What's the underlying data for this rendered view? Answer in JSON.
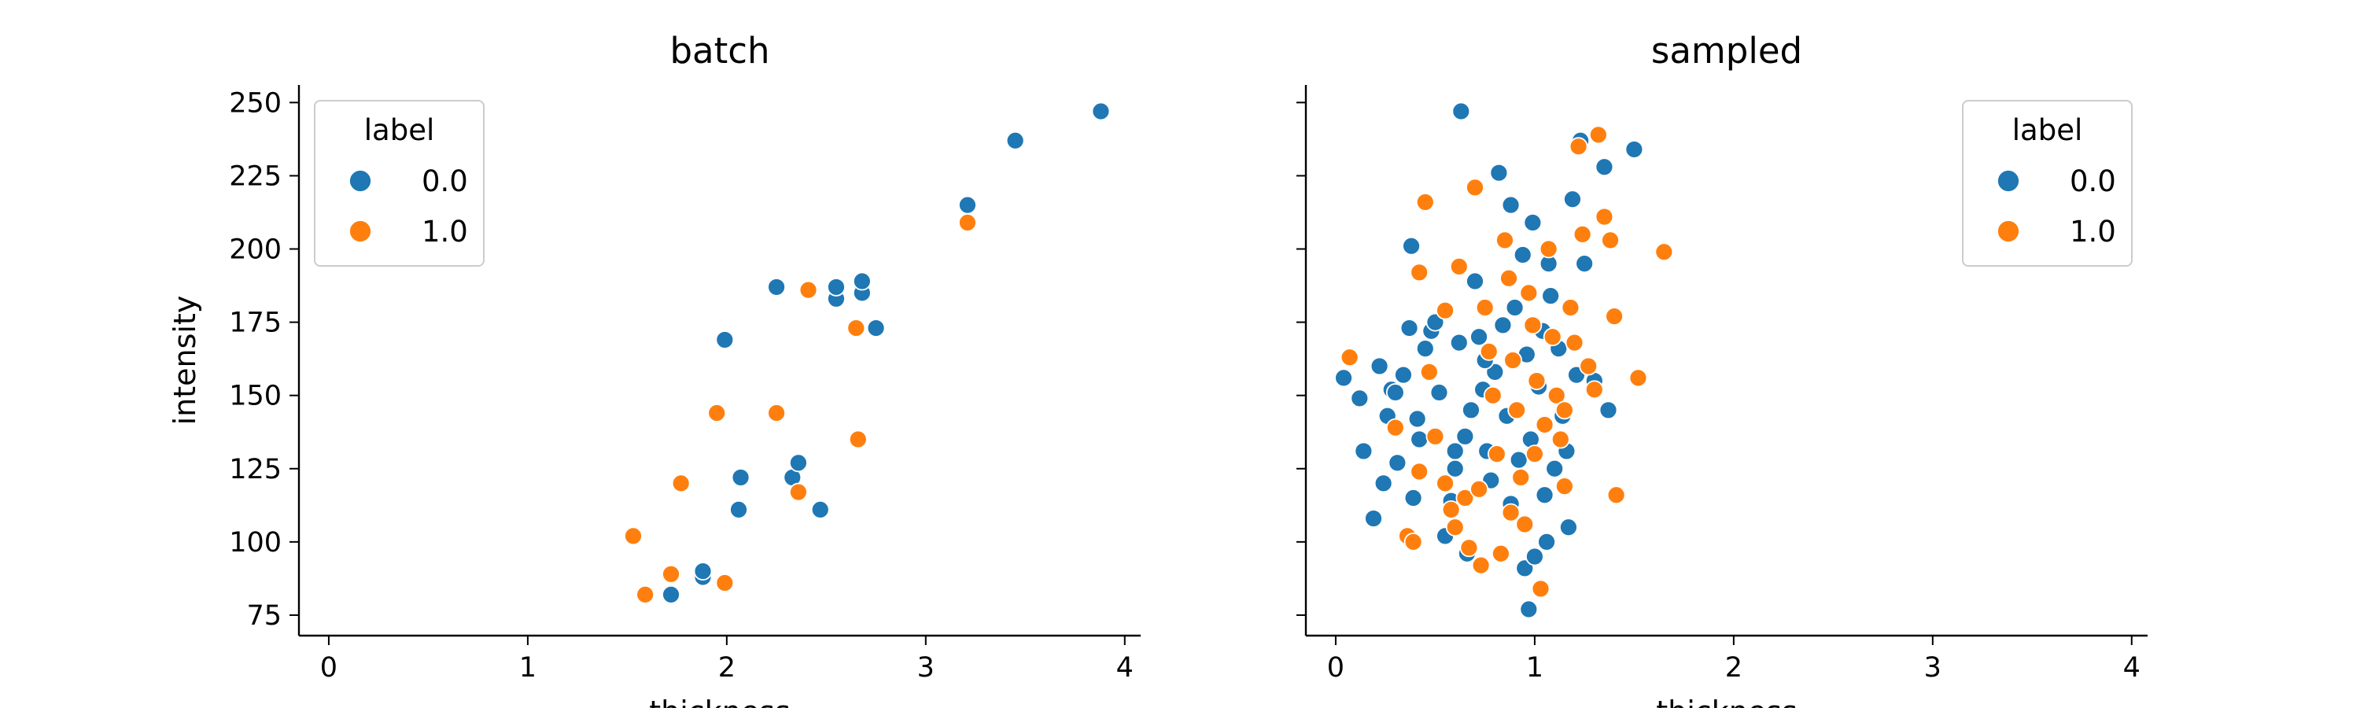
{
  "chart_data": [
    {
      "type": "scatter",
      "title": "batch",
      "xlabel": "thickness",
      "ylabel": "intensity",
      "xlim": [
        -0.15,
        4.08
      ],
      "ylim": [
        68,
        256
      ],
      "xticks": [
        0,
        1,
        2,
        3,
        4
      ],
      "yticks": [
        75,
        100,
        125,
        150,
        175,
        200,
        225,
        250
      ],
      "grid": false,
      "legend": {
        "title": "label",
        "placement": "top-left",
        "entries": [
          "0.0",
          "1.0"
        ]
      },
      "series": [
        {
          "name": "0.0",
          "color": "#1f77b4",
          "points": [
            [
              1.72,
              82
            ],
            [
              1.88,
              88
            ],
            [
              1.88,
              90
            ],
            [
              2.06,
              111
            ],
            [
              2.07,
              122
            ],
            [
              2.33,
              122
            ],
            [
              2.36,
              127
            ],
            [
              2.47,
              111
            ],
            [
              1.99,
              169
            ],
            [
              2.25,
              187
            ],
            [
              2.55,
              183
            ],
            [
              2.55,
              187
            ],
            [
              2.68,
              185
            ],
            [
              2.68,
              189
            ],
            [
              2.75,
              173
            ],
            [
              3.21,
              215
            ],
            [
              3.45,
              237
            ],
            [
              3.88,
              247
            ]
          ]
        },
        {
          "name": "1.0",
          "color": "#ff7f0e",
          "points": [
            [
              1.53,
              102
            ],
            [
              1.59,
              82
            ],
            [
              1.72,
              89
            ],
            [
              1.77,
              120
            ],
            [
              1.95,
              144
            ],
            [
              1.99,
              86
            ],
            [
              2.25,
              144
            ],
            [
              2.36,
              117
            ],
            [
              2.41,
              186
            ],
            [
              2.65,
              173
            ],
            [
              2.66,
              135
            ],
            [
              3.21,
              209
            ]
          ]
        }
      ]
    },
    {
      "type": "scatter",
      "title": "sampled",
      "xlabel": "thickness",
      "ylabel": "",
      "xlim": [
        -0.15,
        4.08
      ],
      "ylim": [
        68,
        256
      ],
      "xticks": [
        0,
        1,
        2,
        3,
        4
      ],
      "yticks": [
        75,
        100,
        125,
        150,
        175,
        200,
        225,
        250
      ],
      "grid": false,
      "legend": {
        "title": "label",
        "placement": "top-right",
        "entries": [
          "0.0",
          "1.0"
        ]
      },
      "series": [
        {
          "name": "0.0",
          "color": "#1f77b4",
          "points": [
            [
              0.04,
              156
            ],
            [
              0.12,
              149
            ],
            [
              0.14,
              131
            ],
            [
              0.19,
              108
            ],
            [
              0.22,
              160
            ],
            [
              0.24,
              120
            ],
            [
              0.26,
              143
            ],
            [
              0.28,
              152
            ],
            [
              0.31,
              127
            ],
            [
              0.34,
              157
            ],
            [
              0.37,
              173
            ],
            [
              0.39,
              115
            ],
            [
              0.41,
              142
            ],
            [
              0.42,
              135
            ],
            [
              0.45,
              166
            ],
            [
              0.48,
              172
            ],
            [
              0.52,
              151
            ],
            [
              0.55,
              102
            ],
            [
              0.58,
              114
            ],
            [
              0.6,
              125
            ],
            [
              0.62,
              168
            ],
            [
              0.63,
              247
            ],
            [
              0.65,
              136
            ],
            [
              0.66,
              96
            ],
            [
              0.68,
              145
            ],
            [
              0.7,
              189
            ],
            [
              0.72,
              170
            ],
            [
              0.74,
              152
            ],
            [
              0.76,
              131
            ],
            [
              0.78,
              121
            ],
            [
              0.8,
              158
            ],
            [
              0.82,
              226
            ],
            [
              0.84,
              174
            ],
            [
              0.86,
              143
            ],
            [
              0.88,
              113
            ],
            [
              0.9,
              180
            ],
            [
              0.92,
              128
            ],
            [
              0.94,
              198
            ],
            [
              0.95,
              91
            ],
            [
              0.96,
              164
            ],
            [
              0.97,
              77
            ],
            [
              0.98,
              135
            ],
            [
              1.0,
              95
            ],
            [
              1.02,
              153
            ],
            [
              1.04,
              172
            ],
            [
              1.05,
              116
            ],
            [
              1.06,
              100
            ],
            [
              1.08,
              184
            ],
            [
              1.1,
              125
            ],
            [
              1.12,
              166
            ],
            [
              1.14,
              143
            ],
            [
              1.16,
              131
            ],
            [
              1.17,
              105
            ],
            [
              1.19,
              217
            ],
            [
              1.21,
              157
            ],
            [
              1.23,
              237
            ],
            [
              1.25,
              195
            ],
            [
              1.3,
              155
            ],
            [
              1.35,
              228
            ],
            [
              1.37,
              145
            ],
            [
              1.5,
              234
            ],
            [
              0.38,
              201
            ],
            [
              0.5,
              175
            ],
            [
              0.75,
              162
            ],
            [
              0.88,
              215
            ],
            [
              1.07,
              195
            ],
            [
              0.99,
              209
            ],
            [
              0.3,
              151
            ],
            [
              0.6,
              131
            ]
          ]
        },
        {
          "name": "1.0",
          "color": "#ff7f0e",
          "points": [
            [
              0.07,
              163
            ],
            [
              0.3,
              139
            ],
            [
              0.36,
              102
            ],
            [
              0.39,
              100
            ],
            [
              0.42,
              192
            ],
            [
              0.45,
              216
            ],
            [
              0.47,
              158
            ],
            [
              0.5,
              136
            ],
            [
              0.55,
              120
            ],
            [
              0.58,
              111
            ],
            [
              0.6,
              105
            ],
            [
              0.62,
              194
            ],
            [
              0.65,
              115
            ],
            [
              0.67,
              98
            ],
            [
              0.7,
              221
            ],
            [
              0.72,
              118
            ],
            [
              0.73,
              92
            ],
            [
              0.75,
              180
            ],
            [
              0.77,
              165
            ],
            [
              0.79,
              150
            ],
            [
              0.81,
              130
            ],
            [
              0.83,
              96
            ],
            [
              0.85,
              203
            ],
            [
              0.87,
              190
            ],
            [
              0.89,
              162
            ],
            [
              0.91,
              145
            ],
            [
              0.93,
              122
            ],
            [
              0.95,
              106
            ],
            [
              0.97,
              185
            ],
            [
              0.99,
              174
            ],
            [
              1.01,
              155
            ],
            [
              1.03,
              84
            ],
            [
              1.05,
              140
            ],
            [
              1.07,
              200
            ],
            [
              1.09,
              170
            ],
            [
              1.11,
              150
            ],
            [
              1.13,
              135
            ],
            [
              1.15,
              119
            ],
            [
              1.18,
              180
            ],
            [
              1.2,
              168
            ],
            [
              1.22,
              235
            ],
            [
              1.24,
              205
            ],
            [
              1.27,
              160
            ],
            [
              1.3,
              152
            ],
            [
              1.32,
              239
            ],
            [
              1.35,
              211
            ],
            [
              1.38,
              203
            ],
            [
              1.4,
              177
            ],
            [
              1.41,
              116
            ],
            [
              1.52,
              156
            ],
            [
              1.65,
              199
            ],
            [
              0.42,
              124
            ],
            [
              0.88,
              110
            ],
            [
              1.0,
              130
            ],
            [
              0.55,
              179
            ],
            [
              1.15,
              145
            ]
          ]
        }
      ]
    }
  ]
}
